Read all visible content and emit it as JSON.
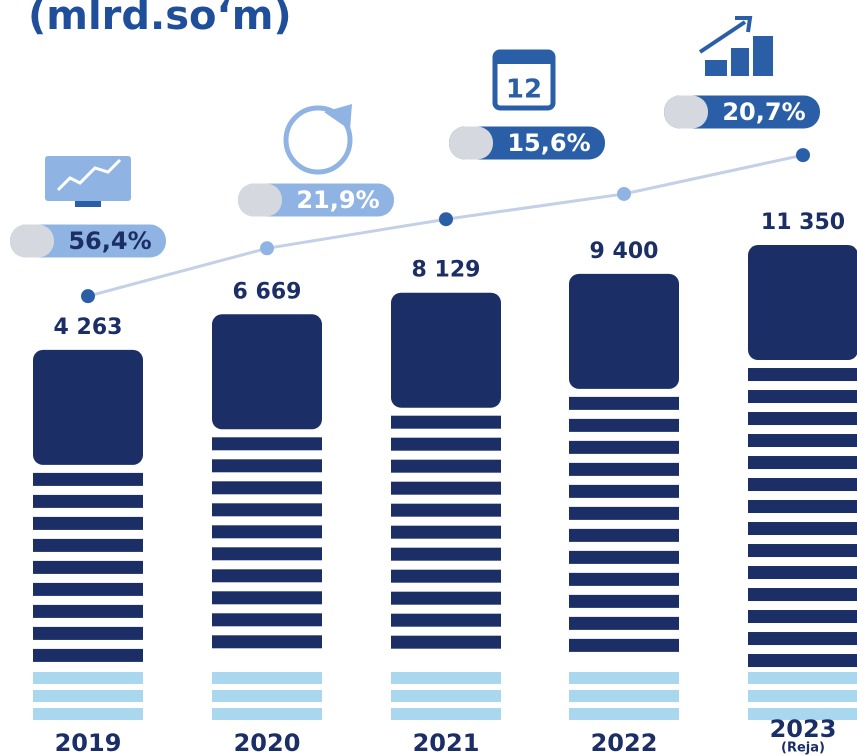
{
  "chart_data": {
    "type": "bar",
    "title": "(mlrd.so‘m)",
    "categories": [
      "2019",
      "2020",
      "2021",
      "2022",
      "2023"
    ],
    "category_notes": [
      null,
      null,
      null,
      null,
      "(Reja)"
    ],
    "values": [
      4263,
      6669,
      8129,
      9400,
      11350
    ],
    "value_labels": [
      "4 263",
      "6 669",
      "8 129",
      "9 400",
      "11 350"
    ],
    "color": "#1b2f66",
    "stripe_color": "#a9d8ee",
    "annotations": [
      {
        "text": "56,4%",
        "color": "#8fb4e3",
        "text_color": "#1b2f66"
      },
      {
        "text": "21,9%",
        "color": "#8fb4e3",
        "text_color": "#ffffff"
      },
      {
        "text": "15,6%",
        "color": "#2a5fa8",
        "text_color": "#ffffff"
      },
      {
        "text": "20,7%",
        "color": "#2a5fa8",
        "text_color": "#ffffff"
      }
    ]
  }
}
